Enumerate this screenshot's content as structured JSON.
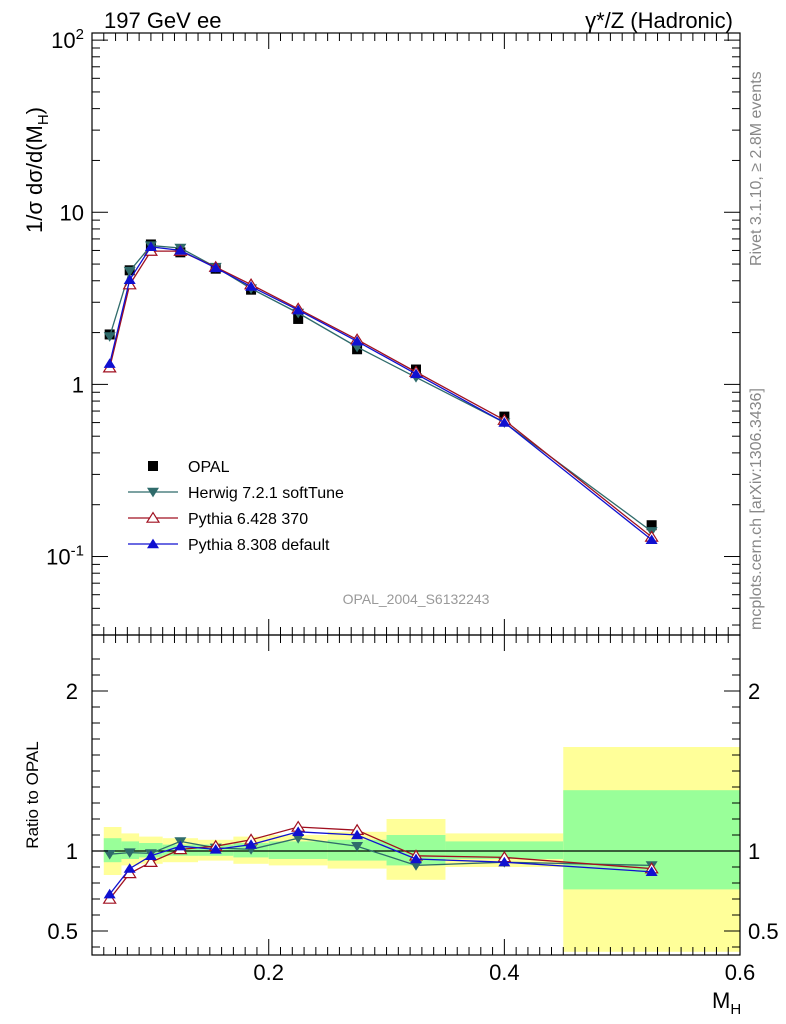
{
  "header": {
    "left_title": "197 GeV ee",
    "right_title": "γ*/Z (Hadronic)"
  },
  "side_text": {
    "rivet": "Rivet 3.1.10, ≥ 2.8M events",
    "mcplots": "mcplots.cern.ch [arXiv:1306.3436]"
  },
  "watermark": "OPAL_2004_S6132243",
  "colors": {
    "opal": "#000000",
    "herwig": "#2f6b6b",
    "pythia6": "#a01020",
    "pythia8": "#1010d0",
    "band_inner": "#99ff99",
    "band_outer": "#ffff99"
  },
  "chart_data": [
    {
      "type": "line",
      "panel": "main",
      "ylabel": "1/σ dσ/d(M_H)",
      "xlabel": "M_H",
      "yscale": "log",
      "ylim": [
        0.035,
        110
      ],
      "xlim": [
        0.05,
        0.6
      ],
      "ytick_labels": [
        "10^-1",
        "1",
        "10",
        "10^2"
      ],
      "x": [
        0.065,
        0.082,
        0.1,
        0.125,
        0.155,
        0.185,
        0.225,
        0.275,
        0.325,
        0.4,
        0.525
      ],
      "series": [
        {
          "name": "OPAL",
          "marker": "square",
          "values": [
            1.95,
            4.6,
            6.5,
            5.85,
            4.7,
            3.55,
            2.4,
            1.6,
            1.22,
            0.65,
            0.152
          ]
        },
        {
          "name": "Herwig 7.2.1 softTune",
          "marker": "triangle-down",
          "values": [
            1.9,
            4.55,
            6.4,
            6.2,
            4.8,
            3.6,
            2.6,
            1.65,
            1.1,
            0.6,
            0.14
          ]
        },
        {
          "name": "Pythia 6.428 370",
          "marker": "triangle-open",
          "values": [
            1.25,
            3.8,
            5.95,
            5.95,
            4.8,
            3.8,
            2.75,
            1.82,
            1.18,
            0.62,
            0.13
          ]
        },
        {
          "name": "Pythia 8.308 default",
          "marker": "triangle-up",
          "values": [
            1.32,
            4.05,
            6.3,
            6.0,
            4.75,
            3.7,
            2.7,
            1.78,
            1.15,
            0.6,
            0.125
          ]
        }
      ],
      "legend_position": "lower-left"
    },
    {
      "type": "line",
      "panel": "ratio",
      "ylabel": "Ratio to OPAL",
      "xlabel": "M_H",
      "ylim": [
        0.35,
        2.35
      ],
      "xlim": [
        0.05,
        0.6
      ],
      "ytick_labels": [
        "0.5",
        "1",
        "2"
      ],
      "xtick_labels": [
        "0.2",
        "0.4",
        "0.6"
      ],
      "x": [
        0.065,
        0.082,
        0.1,
        0.125,
        0.155,
        0.185,
        0.225,
        0.275,
        0.325,
        0.4,
        0.525
      ],
      "bands": [
        {
          "x0": 0.06,
          "x1": 0.075,
          "inner": [
            0.93,
            1.08
          ],
          "outer": [
            0.85,
            1.15
          ]
        },
        {
          "x0": 0.075,
          "x1": 0.09,
          "inner": [
            0.95,
            1.06
          ],
          "outer": [
            0.91,
            1.11
          ]
        },
        {
          "x0": 0.09,
          "x1": 0.11,
          "inner": [
            0.96,
            1.05
          ],
          "outer": [
            0.92,
            1.09
          ]
        },
        {
          "x0": 0.11,
          "x1": 0.14,
          "inner": [
            0.97,
            1.04
          ],
          "outer": [
            0.93,
            1.08
          ]
        },
        {
          "x0": 0.14,
          "x1": 0.17,
          "inner": [
            0.97,
            1.04
          ],
          "outer": [
            0.94,
            1.07
          ]
        },
        {
          "x0": 0.17,
          "x1": 0.2,
          "inner": [
            0.96,
            1.05
          ],
          "outer": [
            0.92,
            1.09
          ]
        },
        {
          "x0": 0.2,
          "x1": 0.25,
          "inner": [
            0.95,
            1.06
          ],
          "outer": [
            0.91,
            1.1
          ]
        },
        {
          "x0": 0.25,
          "x1": 0.3,
          "inner": [
            0.94,
            1.07
          ],
          "outer": [
            0.89,
            1.12
          ]
        },
        {
          "x0": 0.3,
          "x1": 0.35,
          "inner": [
            0.91,
            1.1
          ],
          "outer": [
            0.82,
            1.2
          ]
        },
        {
          "x0": 0.35,
          "x1": 0.45,
          "inner": [
            0.95,
            1.06
          ],
          "outer": [
            0.9,
            1.11
          ]
        },
        {
          "x0": 0.45,
          "x1": 0.6,
          "inner": [
            0.76,
            1.38
          ],
          "outer": [
            0.37,
            1.65
          ]
        }
      ],
      "series": [
        {
          "name": "Herwig 7.2.1 softTune",
          "marker": "triangle-down",
          "values": [
            0.98,
            0.99,
            0.985,
            1.06,
            1.02,
            1.01,
            1.08,
            1.03,
            0.91,
            0.93,
            0.91
          ]
        },
        {
          "name": "Pythia 6.428 370",
          "marker": "triangle-open",
          "values": [
            0.7,
            0.86,
            0.93,
            1.01,
            1.03,
            1.07,
            1.15,
            1.13,
            0.97,
            0.96,
            0.89
          ]
        },
        {
          "name": "Pythia 8.308 default",
          "marker": "triangle-up",
          "values": [
            0.73,
            0.89,
            0.97,
            1.03,
            1.01,
            1.04,
            1.12,
            1.1,
            0.95,
            0.93,
            0.87
          ]
        }
      ]
    }
  ]
}
